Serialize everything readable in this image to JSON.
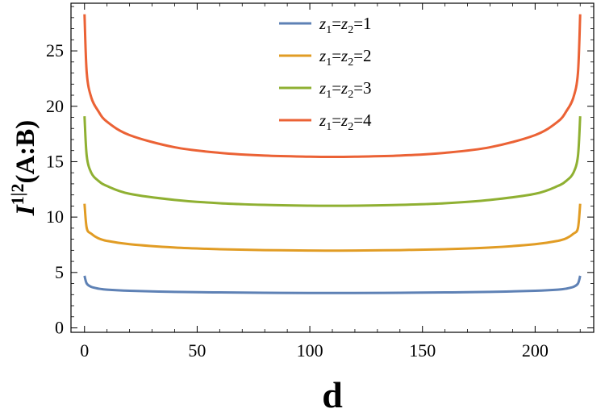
{
  "chart_data": {
    "type": "line",
    "xlabel": "d",
    "ylabel": "I^{1|2}(A:B)",
    "xlim": [
      -6,
      226
    ],
    "ylim": [
      -0.4,
      29.3
    ],
    "x_ticks": [
      0,
      50,
      100,
      150,
      200
    ],
    "y_ticks": [
      0,
      5,
      10,
      15,
      20,
      25
    ],
    "grid": false,
    "legend_position": "top-center",
    "series": [
      {
        "name": "z1=z2=1",
        "legend_parts": [
          "z",
          "1",
          "=",
          "z",
          "2",
          "=1"
        ],
        "color": "#5e81b5",
        "x": [
          0,
          1,
          3,
          6,
          10,
          20,
          40,
          60,
          80,
          100,
          110,
          120,
          140,
          160,
          180,
          200,
          210,
          214,
          217,
          219,
          220
        ],
        "y": [
          4.7,
          4.0,
          3.7,
          3.55,
          3.45,
          3.35,
          3.25,
          3.2,
          3.17,
          3.15,
          3.15,
          3.15,
          3.17,
          3.2,
          3.25,
          3.35,
          3.45,
          3.55,
          3.7,
          4.0,
          4.7
        ]
      },
      {
        "name": "z1=z2=2",
        "legend_parts": [
          "z",
          "1",
          "=",
          "z",
          "2",
          "=2"
        ],
        "color": "#e19c24",
        "x": [
          0,
          1,
          3,
          6,
          10,
          20,
          40,
          60,
          80,
          100,
          110,
          120,
          140,
          160,
          180,
          200,
          210,
          214,
          217,
          219,
          220
        ],
        "y": [
          11.2,
          9.0,
          8.5,
          8.1,
          7.85,
          7.55,
          7.25,
          7.1,
          7.02,
          6.98,
          6.97,
          6.98,
          7.02,
          7.1,
          7.25,
          7.55,
          7.85,
          8.1,
          8.5,
          9.0,
          11.2
        ]
      },
      {
        "name": "z1=z2=3",
        "legend_parts": [
          "z",
          "1",
          "=",
          "z",
          "2",
          "=3"
        ],
        "color": "#8fb032",
        "x": [
          0,
          1,
          3,
          6,
          10,
          20,
          40,
          60,
          80,
          100,
          110,
          120,
          140,
          160,
          180,
          200,
          210,
          214,
          217,
          219,
          220
        ],
        "y": [
          19.1,
          15.5,
          14.0,
          13.3,
          12.8,
          12.1,
          11.55,
          11.25,
          11.1,
          11.03,
          11.02,
          11.03,
          11.1,
          11.25,
          11.55,
          12.1,
          12.8,
          13.3,
          14.0,
          15.5,
          19.1
        ]
      },
      {
        "name": "z1=z2=4",
        "legend_parts": [
          "z",
          "1",
          "=",
          "z",
          "2",
          "=4"
        ],
        "color": "#eb6235",
        "x": [
          0,
          1,
          3,
          6,
          10,
          20,
          40,
          60,
          80,
          100,
          110,
          120,
          140,
          160,
          180,
          200,
          210,
          214,
          217,
          219,
          220
        ],
        "y": [
          28.3,
          23.0,
          20.8,
          19.6,
          18.6,
          17.4,
          16.3,
          15.8,
          15.55,
          15.45,
          15.43,
          15.45,
          15.55,
          15.8,
          16.3,
          17.4,
          18.6,
          19.6,
          20.8,
          23.0,
          28.3
        ]
      }
    ]
  }
}
